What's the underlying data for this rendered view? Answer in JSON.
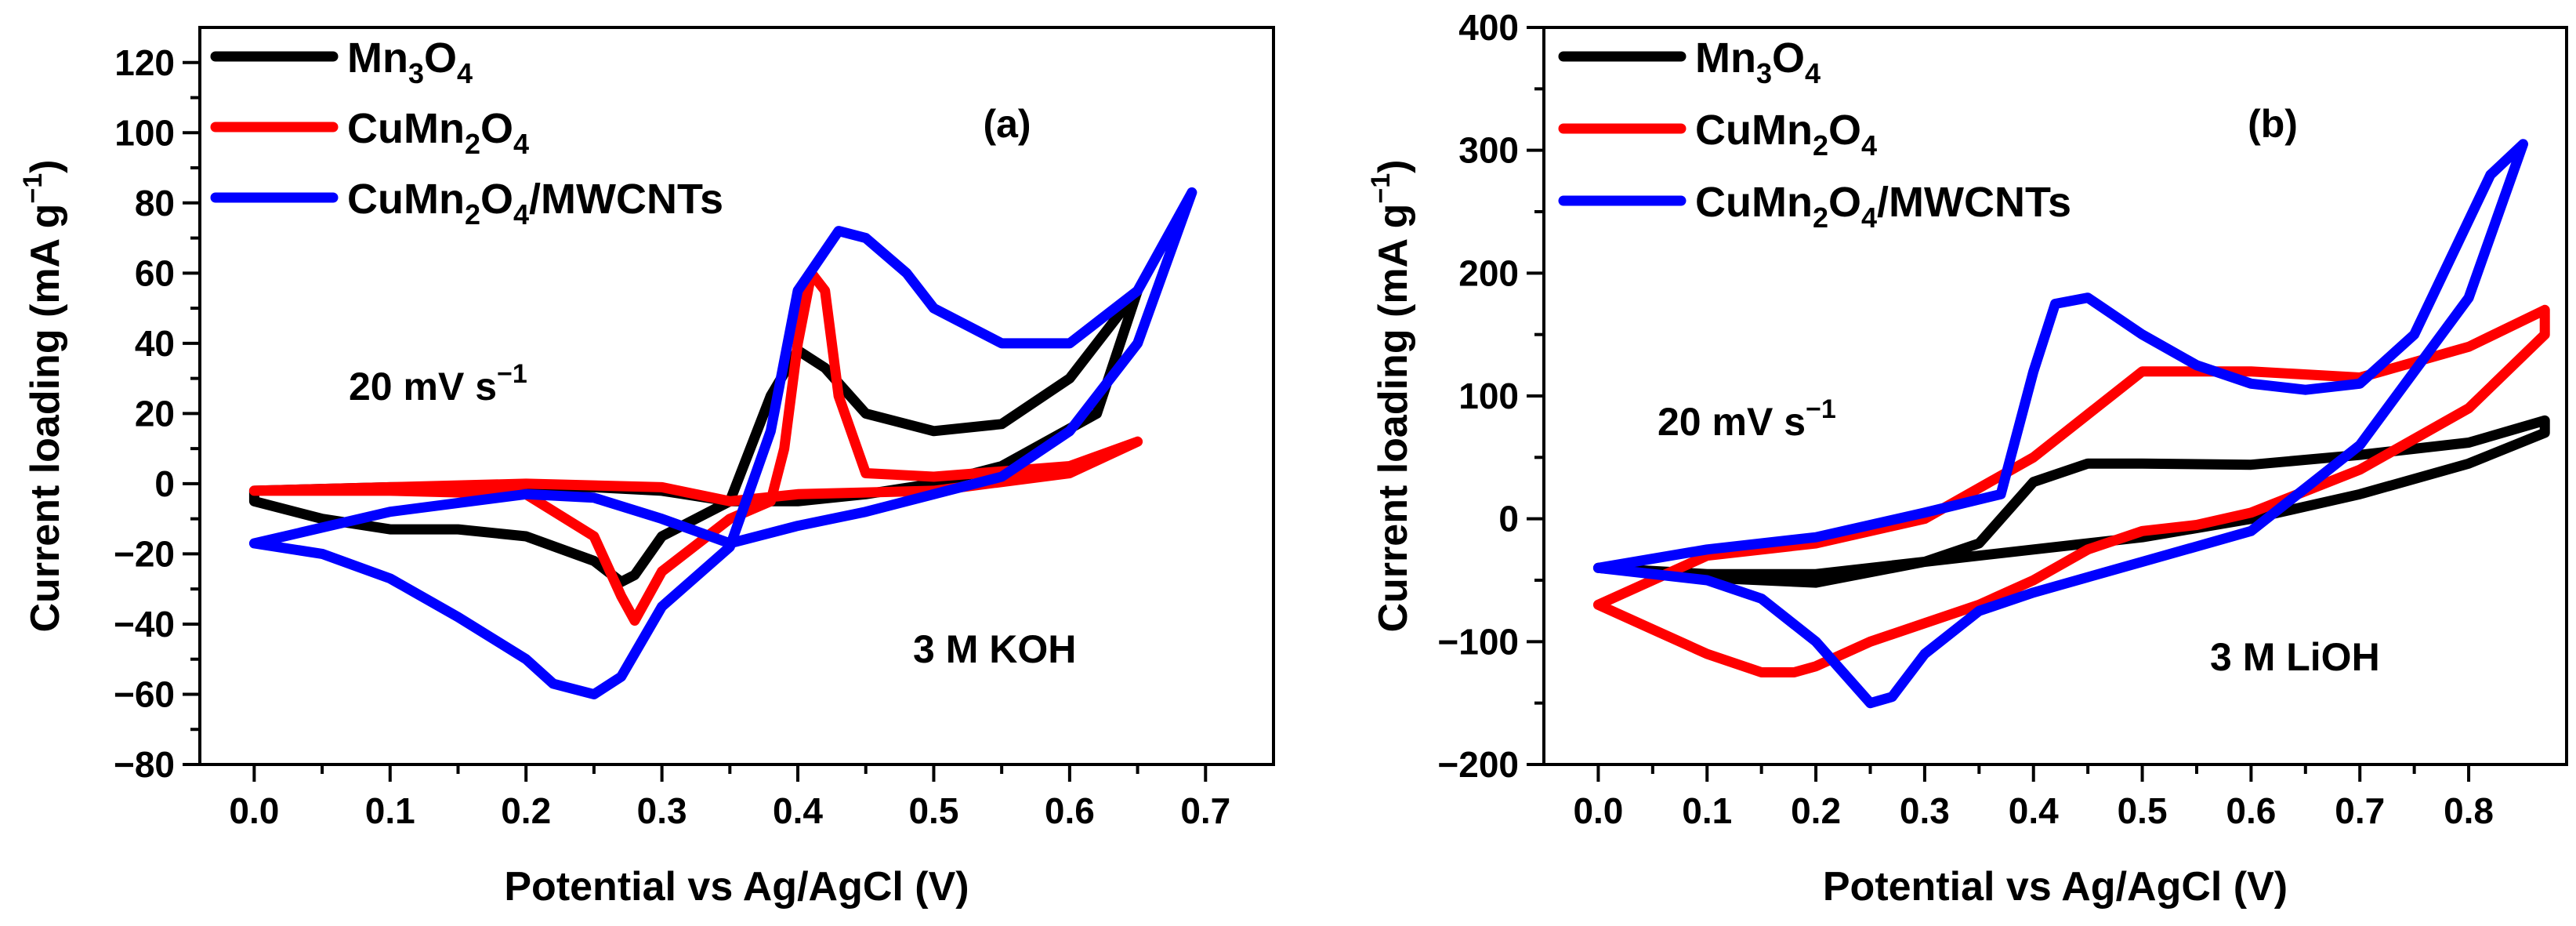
{
  "chart_data": [
    {
      "type": "line",
      "panel_label": "(a)",
      "xlabel": "Potential vs Ag/AgCl (V)",
      "ylabel": "Current loading (mA g⁻¹)",
      "ylabel_parts": {
        "main": "Current loading (mA g",
        "sup": "−1",
        "close": ")"
      },
      "xlim": [
        -0.04,
        0.75
      ],
      "ylim": [
        -80,
        130
      ],
      "xticks": [
        "0.0",
        "0.1",
        "0.2",
        "0.3",
        "0.4",
        "0.5",
        "0.6",
        "0.7"
      ],
      "yticks": [
        "−80",
        "−60",
        "−40",
        "−20",
        "0",
        "20",
        "40",
        "60",
        "80",
        "100",
        "120"
      ],
      "annotations": {
        "scan_rate": {
          "main": "20 mV s",
          "sup": "−1"
        },
        "electrolyte": "3 M KOH"
      },
      "series": [
        {
          "name": "Mn3O4",
          "label_parts": [
            "Mn",
            "3",
            "O",
            "4"
          ],
          "color": "#000000",
          "x": [
            0,
            0.05,
            0.1,
            0.15,
            0.2,
            0.25,
            0.27,
            0.28,
            0.3,
            0.35,
            0.38,
            0.4,
            0.42,
            0.45,
            0.5,
            0.55,
            0.6,
            0.65,
            0.62,
            0.55,
            0.5,
            0.45,
            0.4,
            0.35,
            0.3,
            0.25,
            0.2,
            0.1,
            0,
            0
          ],
          "y": [
            -5,
            -10,
            -13,
            -13,
            -15,
            -22,
            -28,
            -26,
            -15,
            -5,
            25,
            38,
            33,
            20,
            15,
            17,
            30,
            55,
            20,
            5,
            0,
            -3,
            -5,
            -5,
            -2,
            -1,
            -1,
            -1,
            -2,
            -5
          ]
        },
        {
          "name": "CuMn2O4",
          "label_parts": [
            "CuMn",
            "2",
            "O",
            "4"
          ],
          "color": "#ff0000",
          "x": [
            0,
            0.1,
            0.2,
            0.25,
            0.27,
            0.28,
            0.3,
            0.35,
            0.38,
            0.39,
            0.4,
            0.41,
            0.42,
            0.43,
            0.45,
            0.5,
            0.6,
            0.65,
            0.6,
            0.5,
            0.4,
            0.35,
            0.3,
            0.2,
            0.1,
            0
          ],
          "y": [
            -2,
            -2,
            -3,
            -15,
            -32,
            -39,
            -25,
            -10,
            -5,
            10,
            40,
            60,
            55,
            25,
            3,
            2,
            5,
            12,
            3,
            -2,
            -3,
            -5,
            -1,
            0,
            -1,
            -2
          ]
        },
        {
          "name": "CuMn2O4/MWCNTs",
          "label_parts": [
            "CuMn",
            "2",
            "O",
            "4",
            "/MWCNTs"
          ],
          "color": "#0000ff",
          "x": [
            0,
            0.05,
            0.1,
            0.15,
            0.2,
            0.22,
            0.25,
            0.27,
            0.3,
            0.35,
            0.38,
            0.4,
            0.43,
            0.45,
            0.48,
            0.5,
            0.55,
            0.6,
            0.65,
            0.69,
            0.65,
            0.6,
            0.55,
            0.5,
            0.45,
            0.4,
            0.35,
            0.3,
            0.25,
            0.2,
            0.1,
            0
          ],
          "y": [
            -17,
            -20,
            -27,
            -38,
            -50,
            -57,
            -60,
            -55,
            -35,
            -18,
            15,
            55,
            72,
            70,
            60,
            50,
            40,
            40,
            55,
            83,
            40,
            15,
            2,
            -3,
            -8,
            -12,
            -17,
            -10,
            -4,
            -3,
            -8,
            -17
          ]
        }
      ]
    },
    {
      "type": "line",
      "panel_label": "(b)",
      "xlabel": "Potential vs Ag/AgCl (V)",
      "ylabel": "Current loading (mA g⁻¹)",
      "ylabel_parts": {
        "main": "Current loading (mA g",
        "sup": "−1",
        "close": ")"
      },
      "xlim": [
        -0.05,
        0.89
      ],
      "ylim": [
        -200,
        400
      ],
      "xticks": [
        "0.0",
        "0.1",
        "0.2",
        "0.3",
        "0.4",
        "0.5",
        "0.6",
        "0.7",
        "0.8"
      ],
      "yticks": [
        "−200",
        "−100",
        "0",
        "100",
        "200",
        "300",
        "400"
      ],
      "annotations": {
        "scan_rate": {
          "main": "20 mV s",
          "sup": "−1"
        },
        "electrolyte": "3 M LiOH"
      },
      "series": [
        {
          "name": "Mn3O4",
          "label_parts": [
            "Mn",
            "3",
            "O",
            "4"
          ],
          "color": "#000000",
          "x": [
            0,
            0.1,
            0.2,
            0.3,
            0.35,
            0.4,
            0.45,
            0.5,
            0.6,
            0.7,
            0.8,
            0.87,
            0.87,
            0.8,
            0.7,
            0.6,
            0.5,
            0.4,
            0.3,
            0.2,
            0.1,
            0
          ],
          "y": [
            -40,
            -48,
            -52,
            -35,
            -20,
            30,
            45,
            45,
            44,
            52,
            62,
            80,
            70,
            45,
            20,
            0,
            -15,
            -25,
            -35,
            -45,
            -45,
            -40
          ]
        },
        {
          "name": "CuMn2O4",
          "label_parts": [
            "CuMn",
            "2",
            "O",
            "4"
          ],
          "color": "#ff0000",
          "x": [
            0,
            0.05,
            0.1,
            0.15,
            0.18,
            0.2,
            0.25,
            0.3,
            0.35,
            0.4,
            0.45,
            0.5,
            0.55,
            0.6,
            0.7,
            0.8,
            0.87,
            0.87,
            0.8,
            0.7,
            0.6,
            0.5,
            0.4,
            0.3,
            0.2,
            0.1,
            0
          ],
          "y": [
            -70,
            -90,
            -110,
            -125,
            -125,
            -120,
            -100,
            -85,
            -70,
            -50,
            -25,
            -10,
            -5,
            5,
            40,
            90,
            150,
            170,
            140,
            115,
            120,
            120,
            50,
            0,
            -20,
            -30,
            -70
          ]
        },
        {
          "name": "CuMn2O4/MWCNTs",
          "label_parts": [
            "CuMn",
            "2",
            "O",
            "4",
            "/MWCNTs"
          ],
          "color": "#0000ff",
          "x": [
            0,
            0.1,
            0.15,
            0.2,
            0.22,
            0.25,
            0.27,
            0.3,
            0.35,
            0.4,
            0.5,
            0.6,
            0.7,
            0.8,
            0.85,
            0.82,
            0.75,
            0.7,
            0.65,
            0.6,
            0.55,
            0.5,
            0.45,
            0.42,
            0.4,
            0.37,
            0.3,
            0.2,
            0.1,
            0
          ],
          "y": [
            -40,
            -50,
            -65,
            -100,
            -120,
            -150,
            -145,
            -110,
            -75,
            -60,
            -35,
            -10,
            60,
            180,
            305,
            280,
            150,
            110,
            105,
            110,
            125,
            150,
            180,
            175,
            120,
            20,
            5,
            -15,
            -25,
            -40
          ]
        }
      ]
    }
  ]
}
